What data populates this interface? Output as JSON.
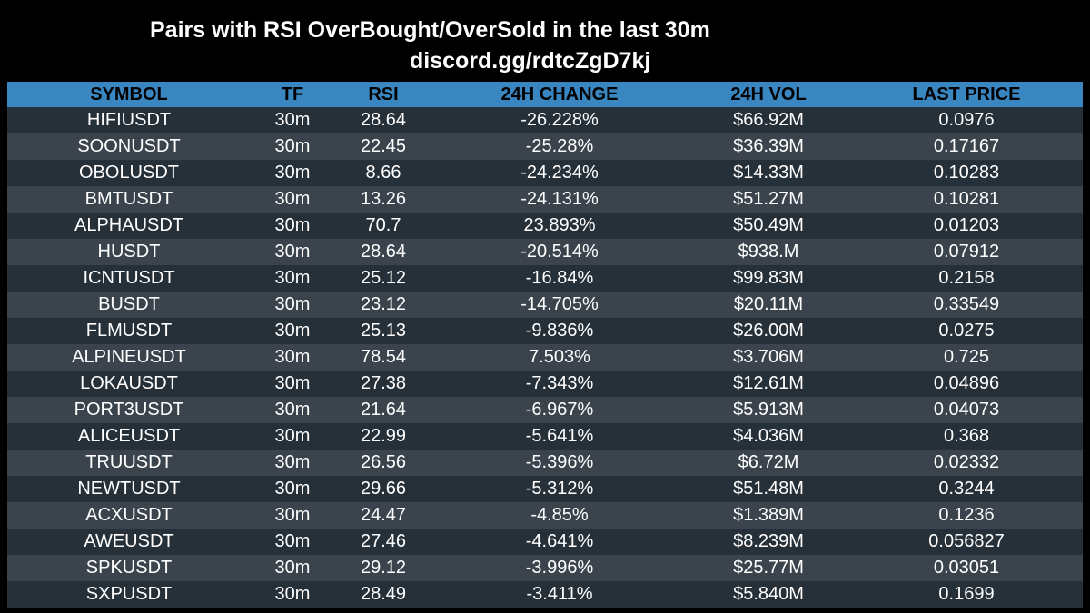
{
  "header": {
    "title": "Pairs with RSI OverBought/OverSold in the last 30m",
    "subtitle": "discord.gg/rdtcZgD7kj"
  },
  "table": {
    "columns": [
      "SYMBOL",
      "TF",
      "RSI",
      "24H CHANGE",
      "24H VOL",
      "LAST PRICE"
    ],
    "rows": [
      [
        "HIFIUSDT",
        "30m",
        "28.64",
        "-26.228%",
        "$66.92M",
        "0.0976"
      ],
      [
        "SOONUSDT",
        "30m",
        "22.45",
        "-25.28%",
        "$36.39M",
        "0.17167"
      ],
      [
        "OBOLUSDT",
        "30m",
        "8.66",
        "-24.234%",
        "$14.33M",
        "0.10283"
      ],
      [
        "BMTUSDT",
        "30m",
        "13.26",
        "-24.131%",
        "$51.27M",
        "0.10281"
      ],
      [
        "ALPHAUSDT",
        "30m",
        "70.7",
        "23.893%",
        "$50.49M",
        "0.01203"
      ],
      [
        "HUSDT",
        "30m",
        "28.64",
        "-20.514%",
        "$938.M",
        "0.07912"
      ],
      [
        "ICNTUSDT",
        "30m",
        "25.12",
        "-16.84%",
        "$99.83M",
        "0.2158"
      ],
      [
        "BUSDT",
        "30m",
        "23.12",
        "-14.705%",
        "$20.11M",
        "0.33549"
      ],
      [
        "FLMUSDT",
        "30m",
        "25.13",
        "-9.836%",
        "$26.00M",
        "0.0275"
      ],
      [
        "ALPINEUSDT",
        "30m",
        "78.54",
        "7.503%",
        "$3.706M",
        "0.725"
      ],
      [
        "LOKAUSDT",
        "30m",
        "27.38",
        "-7.343%",
        "$12.61M",
        "0.04896"
      ],
      [
        "PORT3USDT",
        "30m",
        "21.64",
        "-6.967%",
        "$5.913M",
        "0.04073"
      ],
      [
        "ALICEUSDT",
        "30m",
        "22.99",
        "-5.641%",
        "$4.036M",
        "0.368"
      ],
      [
        "TRUUSDT",
        "30m",
        "26.56",
        "-5.396%",
        "$6.72M",
        "0.02332"
      ],
      [
        "NEWTUSDT",
        "30m",
        "29.66",
        "-5.312%",
        "$51.48M",
        "0.3244"
      ],
      [
        "ACXUSDT",
        "30m",
        "24.47",
        "-4.85%",
        "$1.389M",
        "0.1236"
      ],
      [
        "AWEUSDT",
        "30m",
        "27.46",
        "-4.641%",
        "$8.239M",
        "0.056827"
      ],
      [
        "SPKUSDT",
        "30m",
        "29.12",
        "-3.996%",
        "$25.77M",
        "0.03051"
      ],
      [
        "SXPUSDT",
        "30m",
        "28.49",
        "-3.411%",
        "$5.840M",
        "0.1699"
      ]
    ]
  },
  "colors": {
    "background": "#000000",
    "header_bg": "#3a86c0",
    "row_dark": "#263038",
    "row_light": "#3b444c",
    "text": "#ffffff"
  }
}
